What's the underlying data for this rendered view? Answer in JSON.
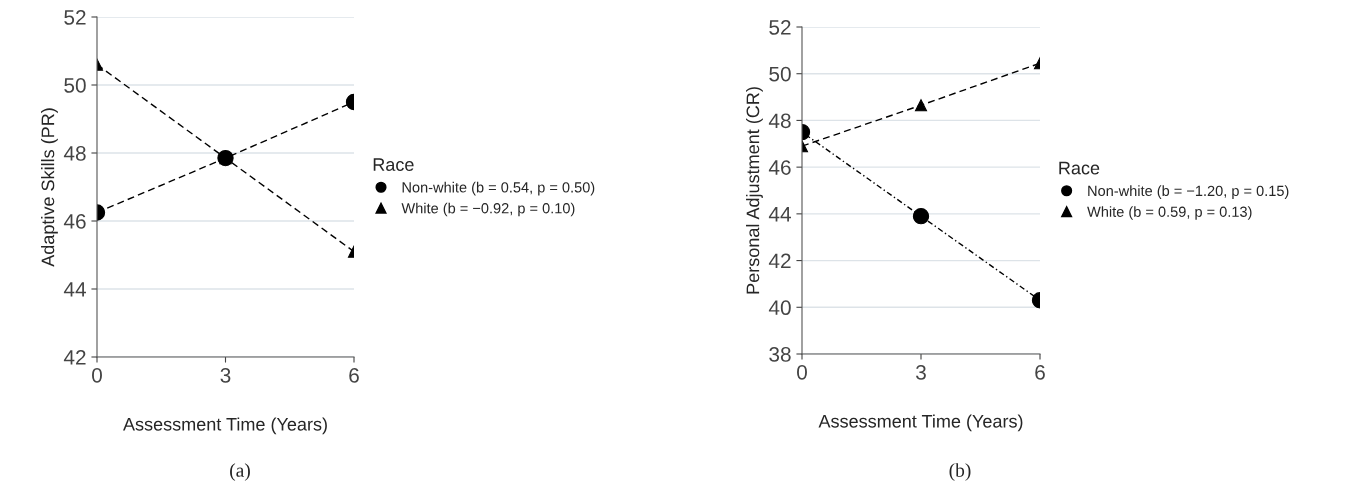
{
  "chart_data": [
    {
      "type": "line",
      "x": [
        0,
        3,
        6
      ],
      "xlabel": "Assessment Time (Years)",
      "ylabel": "Adaptive Skills (PR)",
      "xlim": [
        0,
        6
      ],
      "xticks": [
        0,
        3,
        6
      ],
      "ylim": [
        42,
        52
      ],
      "yticks": [
        42,
        44,
        46,
        48,
        50,
        52
      ],
      "grid": "y",
      "legend": "right",
      "legend_title": "Race",
      "annotations": [
        "(a)"
      ],
      "series": [
        {
          "name": "Non-white (b = 0.54, p = 0.50)",
          "color": "#000000",
          "values": [
            46.25,
            47.85,
            49.5
          ],
          "marker": "circle",
          "line_style": "dashed"
        },
        {
          "name": "White (b = −0.92, p = 0.10)",
          "color": "#000000",
          "values": [
            50.6,
            47.85,
            45.1
          ],
          "marker": "triangle",
          "line_style": "dashed"
        }
      ]
    },
    {
      "type": "line",
      "x": [
        0,
        3,
        6
      ],
      "xlabel": "Assessment Time (Years)",
      "ylabel": "Personal Adjustment (CR)",
      "xlim": [
        0,
        6
      ],
      "xticks": [
        0,
        3,
        6
      ],
      "ylim": [
        38,
        52
      ],
      "yticks": [
        38,
        40,
        42,
        44,
        46,
        48,
        50,
        52
      ],
      "grid": "y",
      "legend": "right",
      "legend_title": "Race",
      "annotations": [
        "(b)"
      ],
      "series": [
        {
          "name": "Non-white (b = −1.20, p = 0.15)",
          "color": "#000000",
          "values": [
            47.5,
            43.9,
            40.3
          ],
          "marker": "circle",
          "line_style": "dotted"
        },
        {
          "name": "White (b = 0.59, p = 0.13)",
          "color": "#000000",
          "values": [
            46.9,
            48.65,
            50.45
          ],
          "marker": "triangle",
          "line_style": "dashed"
        }
      ]
    }
  ]
}
